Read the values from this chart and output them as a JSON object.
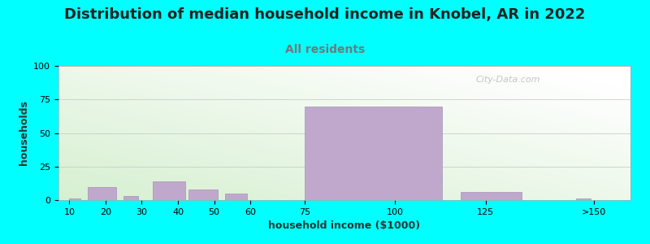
{
  "title": "Distribution of median household income in Knobel, AR in 2022",
  "subtitle": "All residents",
  "xlabel": "household income ($1000)",
  "ylabel": "households",
  "background_color": "#00FFFF",
  "bar_color": "#C0A8CC",
  "bar_edge_color": "#A890BC",
  "ylim": [
    0,
    100
  ],
  "yticks": [
    0,
    25,
    50,
    75,
    100
  ],
  "bar_lefts": [
    10,
    15,
    25,
    33,
    43,
    53,
    75,
    113,
    118,
    150
  ],
  "bar_widths": [
    3,
    8,
    4,
    9,
    8,
    6,
    38,
    0,
    17,
    4
  ],
  "bar_heights": [
    1,
    10,
    3,
    14,
    8,
    5,
    70,
    0,
    6,
    1
  ],
  "xtick_positions": [
    10,
    20,
    30,
    40,
    50,
    60,
    75,
    100,
    125,
    155
  ],
  "xtick_labels": [
    "10",
    "20",
    "30",
    "40",
    "50",
    "60",
    "75",
    "100",
    "125",
    ">150"
  ],
  "xlim_left": 7,
  "xlim_right": 165,
  "watermark": "City-Data.com",
  "title_fontsize": 13,
  "subtitle_fontsize": 10,
  "subtitle_color": "#777777",
  "axis_label_fontsize": 9,
  "tick_fontsize": 8,
  "plot_bg_green": [
    0.84,
    0.94,
    0.82
  ],
  "plot_bg_white": [
    1.0,
    1.0,
    1.0
  ]
}
